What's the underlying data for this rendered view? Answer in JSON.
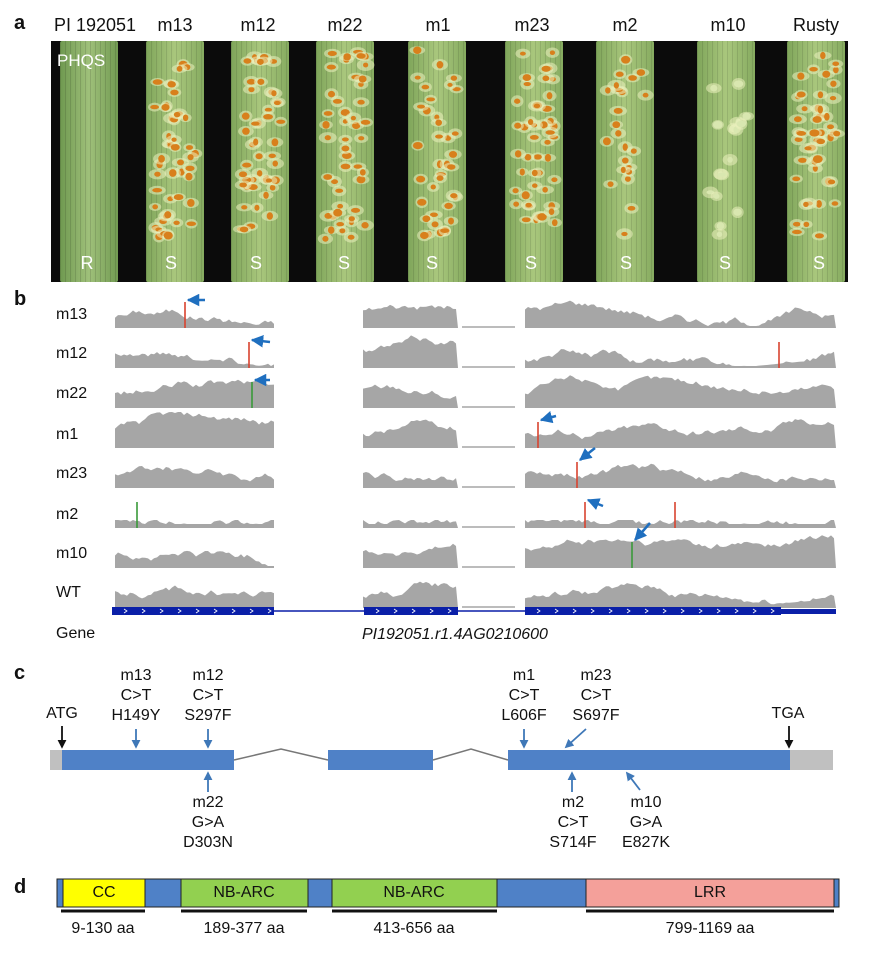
{
  "panels": {
    "a": "a",
    "b": "b",
    "c": "c",
    "d": "d"
  },
  "panel_a": {
    "columns": [
      "PI 192051",
      "m13",
      "m12",
      "m22",
      "m1",
      "m23",
      "m2",
      "m10",
      "Rusty"
    ],
    "reactions": [
      "R",
      "S",
      "S",
      "S",
      "S",
      "S",
      "S",
      "S",
      "S"
    ],
    "overlay_label": "PHQS"
  },
  "panel_b": {
    "samples": [
      "m13",
      "m12",
      "m22",
      "m1",
      "m23",
      "m2",
      "m10",
      "WT"
    ],
    "gene_row_label": "Gene",
    "gene_id": "PI192051.r1.4AG0210600",
    "colors": {
      "coverage": "#a6a6a6",
      "gene": "#0a1fa8",
      "arrow": "#1f6fbf",
      "snp_red": "#d9432f",
      "snp_green": "#3a9a3a"
    }
  },
  "panel_c": {
    "start_codon": "ATG",
    "stop_codon": "TGA",
    "mutations_above": [
      {
        "name": "m13",
        "change": "C>T",
        "aa": "H149Y"
      },
      {
        "name": "m12",
        "change": "C>T",
        "aa": "S297F"
      },
      {
        "name": "m1",
        "change": "C>T",
        "aa": "L606F"
      },
      {
        "name": "m23",
        "change": "C>T",
        "aa": "S697F"
      }
    ],
    "mutations_below": [
      {
        "name": "m22",
        "change": "G>A",
        "aa": "D303N"
      },
      {
        "name": "m2",
        "change": "C>T",
        "aa": "S714F"
      },
      {
        "name": "m10",
        "change": "G>A",
        "aa": "E827K"
      }
    ],
    "colors": {
      "exon": "#4f81c7",
      "utr": "#c0c0c0",
      "arrow": "#3f78b8"
    }
  },
  "panel_d": {
    "domains": [
      {
        "label": "CC",
        "range": "9-130 aa",
        "color": "#ffff00"
      },
      {
        "label": "NB-ARC",
        "range": "189-377 aa",
        "color": "#92d050"
      },
      {
        "label": "NB-ARC",
        "range": "413-656 aa",
        "color": "#92d050"
      },
      {
        "label": "LRR",
        "range": "799-1169 aa",
        "color": "#f4a09a"
      }
    ],
    "backbone_color": "#4f81c7"
  }
}
